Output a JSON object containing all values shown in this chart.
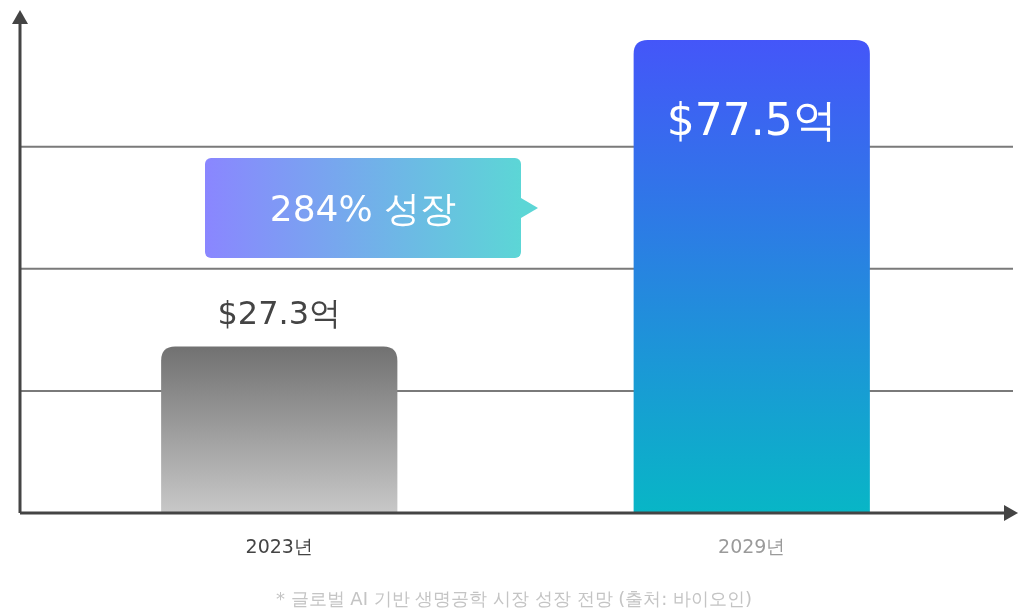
{
  "chart_data": {
    "type": "bar",
    "categories": [
      "2023년",
      "2029년"
    ],
    "values": [
      27.3,
      77.5
    ],
    "value_labels": [
      "$27.3억",
      "$77.5억"
    ],
    "colors": [
      "#8c8c8c",
      "#2a80e0"
    ],
    "yticks": [
      {
        "value": 20,
        "label": null
      },
      {
        "value": 40,
        "label": null
      },
      {
        "value": 60,
        "label": null
      }
    ],
    "grid": "y",
    "annotations": [
      "284% 성장",
      "* 글로벌 AI 기반 생명공학 시장 성장 전망 (출처: 바이오인)"
    ]
  }
}
